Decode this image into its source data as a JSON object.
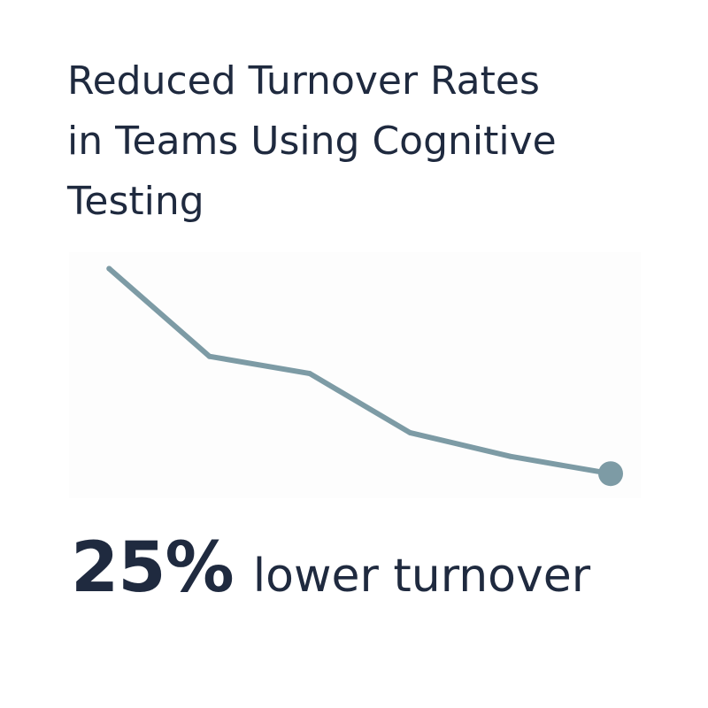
{
  "title_lines": [
    "Reduced Turnover Rates",
    "in Teams Using Cognitive",
    "Testing"
  ],
  "stat": {
    "value": "25%",
    "label": "lower turnover"
  },
  "colors": {
    "text": "#1f2a3f",
    "line": "#7d9ba5",
    "background": "#ffffff"
  },
  "chart_data": {
    "type": "line",
    "title": "Reduced Turnover Rates in Teams Using Cognitive Testing",
    "xlabel": "",
    "ylabel": "",
    "grid": false,
    "legend": "none",
    "x": [
      1,
      2,
      3,
      4,
      5,
      6
    ],
    "series": [
      {
        "values": [
          100,
          89.3,
          87.2,
          80.0,
          77.1,
          75.0
        ]
      }
    ],
    "xlim": [
      0.6,
      6.3
    ],
    "ylim": [
      72,
      102
    ],
    "end_marker": true
  }
}
